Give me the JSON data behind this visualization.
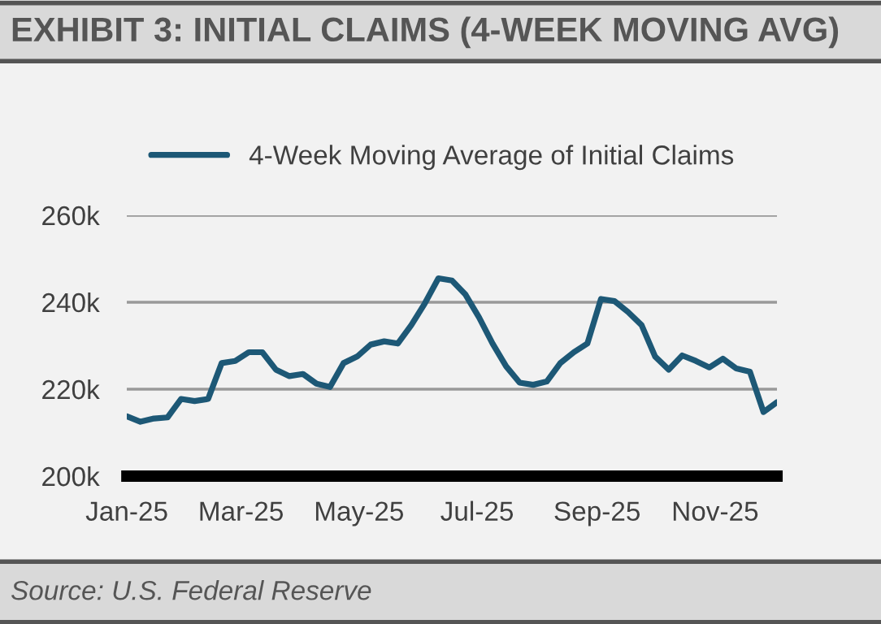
{
  "chart_data": {
    "type": "line",
    "title": "EXHIBIT 3: INITIAL CLAIMS (4-WEEK MOVING AVG)",
    "annotations": [
      "Source: U.S. Federal Reserve"
    ],
    "x": [
      "2025-01-01",
      "2025-01-08",
      "2025-01-15",
      "2025-01-22",
      "2025-01-29",
      "2025-02-05",
      "2025-02-12",
      "2025-02-19",
      "2025-02-26",
      "2025-03-05",
      "2025-03-12",
      "2025-03-19",
      "2025-03-26",
      "2025-04-02",
      "2025-04-09",
      "2025-04-16",
      "2025-04-23",
      "2025-04-30",
      "2025-05-07",
      "2025-05-14",
      "2025-05-21",
      "2025-05-28",
      "2025-06-04",
      "2025-06-11",
      "2025-06-18",
      "2025-06-25",
      "2025-07-02",
      "2025-07-09",
      "2025-07-16",
      "2025-07-23",
      "2025-07-30",
      "2025-08-06",
      "2025-08-13",
      "2025-08-20",
      "2025-08-27",
      "2025-09-03",
      "2025-09-10",
      "2025-09-17",
      "2025-09-24",
      "2025-10-01",
      "2025-10-08",
      "2025-10-15",
      "2025-10-22",
      "2025-10-29",
      "2025-11-05",
      "2025-11-12",
      "2025-11-19",
      "2025-11-26",
      "2025-12-03"
    ],
    "series": [
      {
        "name": "4-Week Moving Average of Initial Claims",
        "color": "#1d5876",
        "values": [
          213750,
          212500,
          213250,
          213500,
          217750,
          217250,
          217750,
          226000,
          226500,
          228500,
          228500,
          224500,
          223000,
          223500,
          221250,
          220500,
          226000,
          227500,
          230250,
          231000,
          230500,
          234750,
          239750,
          245500,
          245000,
          241750,
          236500,
          230500,
          225250,
          221500,
          221000,
          221750,
          226000,
          228500,
          230500,
          240750,
          240250,
          237750,
          234750,
          227500,
          224500,
          227750,
          226500,
          225000,
          227000,
          224750,
          224000,
          214750,
          217000
        ]
      }
    ],
    "xlim": [
      "2025-01-01",
      "2025-12-03"
    ],
    "xticks": [
      {
        "value": "2025-01-01",
        "label": "Jan-25"
      },
      {
        "value": "2025-03-01",
        "label": "Mar-25"
      },
      {
        "value": "2025-05-01",
        "label": "May-25"
      },
      {
        "value": "2025-07-01",
        "label": "Jul-25"
      },
      {
        "value": "2025-09-01",
        "label": "Sep-25"
      },
      {
        "value": "2025-11-01",
        "label": "Nov-25"
      }
    ],
    "ylim": [
      200000,
      260000
    ],
    "yticks": [
      {
        "value": 200000,
        "label": "200k"
      },
      {
        "value": 220000,
        "label": "220k"
      },
      {
        "value": 240000,
        "label": "240k"
      },
      {
        "value": 260000,
        "label": "260k"
      }
    ],
    "grid": "y",
    "legend": "top left",
    "marker": "none",
    "line_style": "solid"
  }
}
